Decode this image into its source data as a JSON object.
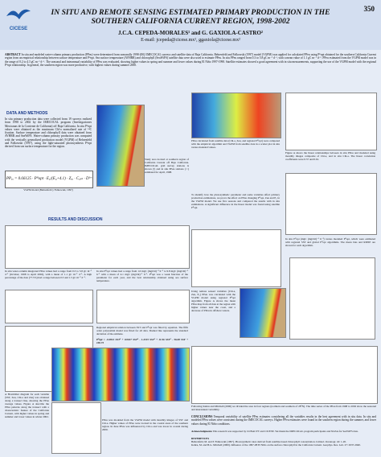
{
  "header": {
    "page_number": "350",
    "logo": "CICESE",
    "title": "IN SITU AND REMOTE SENSING ESTIMATED PRIMARY PRODUCTION IN THE SOUTHERN CALIFORNIA CURRENT REGION, 1998-2002",
    "authors": "J.C.A. CEPEDA-MORALES¹ and G. GAXIOLA-CASTRO²",
    "email": "E-mail: jcepeda@cicese.mx¹, ggaxiola@cicese.mx²"
  },
  "abstract": {
    "heading": "ABSTRACT",
    "text": "In situ and modeled water-column primary production (PPeu) were determined from seasonally 1998-2002 IMECOCAL surveys and satellite data of Baja California. Behrenfeld and Falkowski (1997) model (VGPM) was applied for calculated PPeu using Pᴮopt obtained for the southern California Current region from an empirical relationship between surface temperature and Pᴮopt. Sea surface temperature (AVHRR) and chlorophyll (SeaWiFS) satellite data were also used to estimate PPeu. In situ PPeu ranged from 0.3 to 5.8 gC m⁻² d⁻¹, with a mean value of 1.1 gC m⁻² d⁻¹. PPeu estimated from the VGPM model was in the range of 0.2 to 4.3 gC m⁻² d⁻¹. The seasonal and interannual variability of PPeu was evaluated, showing higher values in spring and summer and lower values during El Niño 1997-1998. Satellite estimates showed a good agreement with in situ measurements, supporting the use of the VGPM model with the regional Pᴮopt relationship. In general, the southern region was more productive, with highest values during summer 2000."
  },
  "methods": {
    "heading": "DATA AND METHODS",
    "text": "In situ primary production data were collected from 19 surveys realized from 1998 to 2002 by the IMECOCAL program (Investigaciones Mexicanas de la Corriente de California) off Baja California. In situ Pᴮopt values were obtained as the maximum Chl-a normalized rate of ¹⁴C fixation. Surface temperature and chlorophyll data were obtained from AVHRR and SeaWiFS. Water-column primary production was computed with the vertically generalized production model (VGPM) of Behrenfeld and Falkowski (1997), using the light-saturated photosynthesis Pᴮopt derived from sea surface temperature for the region.",
    "equation": "PPₑᵤ = 0.66125 · Pᴮopt · E₀/(E₀+4.1) · Zₑᵤ · Cₒₚₜ · Dᴵʳˢ",
    "equation_caption": "VGPM model (Behrenfeld y Falkowski, 1997)",
    "map_caption": "Study area located at southern region of California Current off Baja California. IMECOCAL grid survey stations is shown (•) and in situ PPeu stations (○) estimated for April, 1998."
  },
  "results": {
    "heading": "RESULTS AND DISCUSSION",
    "cap_insitu": "In situ water-column integrated PPeu values had a range from 0.3 to 5.8 gC m⁻² d⁻¹ (October, 1998 to April 2002), with a mean of 1.1 gC m⁻² d⁻¹. A high percentage of the data (77.5%) had a range between 0.3 and 1.5 gC m⁻² d⁻¹.",
    "cap_popt": "In situ Pᴮopt values had a range from 1.0 mgC (mgChl)⁻¹ h⁻¹ to 9.8 mgC (mgChl)⁻¹ h⁻¹ with a mean of 4.1 mgC (mgChl)⁻¹ h⁻¹. Pᴮopt was a weak function of the parameter for each year, and the best relationship obtained using sea surface temperature.",
    "cap_reg": "Regional empirical relation between SST and Pᴮopt was fitted by equation. The fifth order polynomial model was fitted for all data. Dashed line represents the standard deviation of the estimate.",
    "regression": "Pᴮopt = -0.0012 SST⁵ + 0.0617 SST⁴ - 1.2315 SST³ + 11.96 SST² - 56.68 SST + 106.73",
    "cap_hov": "A Hovmöller diagram for each variable (SST, Zeu, Chl-a and Zeu) was obtained along a transect line, showing the PPeu average values. Figure A describe the PPeu patterns along the transect with a characteristic feature of the California Current, with higher values in spring and summer and lower values in winter 2002.",
    "cap_vgpm": "PPeu was modeled from the VGPM model with monthly images of SST and Chl-a. Higher values of PPeu were located in the coastal areas of the southern region. In June PPeu was influenced by Chl-a and was lower in coastal during 2000.",
    "cap_compare": "PPeu calculated from satellite data (Chl-a, Zeu, and regional Pᴮopt) were compared with the empirical algorithm and VGPM from satellite data in a scatter plot in situ versus modeled values.",
    "cap_seasonal": "To identify how the photosynthetic parameter and some variables affect primary production estimations, we prove the effect on PPeu changing Pᴮopt, Zeu and E₀ in the VGPM model. We use five seasons and compared the results with in situ estimations. A significant difference in the linear model was found using satellite Pᴮopt.",
    "cap_fig_d": "Figure A shows the linear relationships between in situ PPeu and modeled using monthly images composite of Chl-a, and in situ Chl-a. The linear correlation coefficients were 0.57 and 0.61.",
    "cap_ratio": "In situ Pᴮopt (mgC (mgChl)⁻¹ h⁻¹) versus modeled Pᴮopt, which were estimated with regional SST and global Pᴮopt algorithms. The mean bias and RMSE are shown for each algorithm.",
    "cap_map2": "Using remote sensed variables (Chl-a, Zeu, E₀) PPeu was calculated with the VGPM model using regional Pᴮopt algorithm. Figure A shows the mean PPeu map from all data at the region with higher values near the coast, and a decrease of PPeu in offshore waters.",
    "cap_ts": "Following Kahru and Mitchell (2000) we divided the area in four regions (northern and southern of 28°N). The time series of the PPeu from 1998 to 2002 show the seasonal and interannual variability."
  },
  "conclusions": {
    "heading": "CONCLUSIONS",
    "text": "Temporal variability of satellite PPeu estimates considering all the variables results in the best agreement with in situ data. In situ and modeled PPeu values were consistent during the IMECOCAL surveys. Higher PPeu estimates were found in the southern region during the summer, and lower values during El Niño conditions."
  },
  "acknowledgments": {
    "heading": "Acknowledgments",
    "text": "This research was supported by CONACYT and CICESE. We thank the IMECOCAL program participants and NASA for SeaWiFS data."
  },
  "references": {
    "heading": "REFERENCES",
    "items": [
      "Behrenfeld, M. and P. Falkowski (1997). Photosynthetic rates derived from satellite-based chlorophyll concentration. Limnol. Oceanogr. 42: 1-20.",
      "Kahru, M. and B.G. Mitchell (2000). Influence of the 1997-98 El Niño on the surface chlorophyll in the California Current. Geophys. Res. Lett. 27: 2937-2940."
    ]
  }
}
